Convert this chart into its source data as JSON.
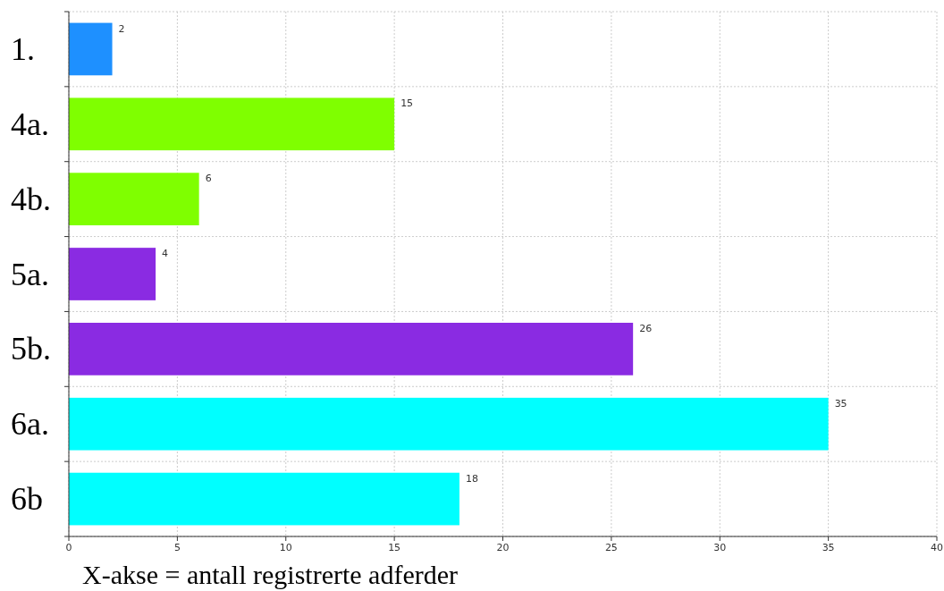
{
  "chart_data": {
    "type": "bar",
    "orientation": "horizontal",
    "xlabel": "X-akse = antall registrerte adferder",
    "categories": [
      "1.",
      "4a.",
      "4b.",
      "5a.",
      "5b.",
      "6a.",
      "6b"
    ],
    "values": [
      2,
      15,
      6,
      4,
      26,
      35,
      18
    ],
    "colors": [
      "#1e90ff",
      "#7fff00",
      "#7fff00",
      "#8a2be2",
      "#8a2be2",
      "#00ffff",
      "#00ffff"
    ],
    "xlim": [
      0,
      40
    ],
    "xticks": [
      0,
      5,
      10,
      15,
      20,
      25,
      30,
      35,
      40
    ],
    "grid": true,
    "data_labels": true
  }
}
